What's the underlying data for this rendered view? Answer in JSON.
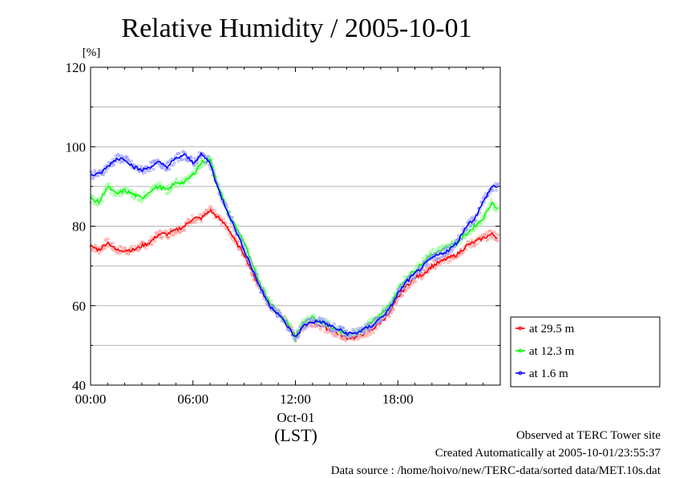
{
  "chart_data": {
    "type": "line",
    "title": "Relative Humidity / 2005-10-01",
    "ylabel": "[%]",
    "xlabel": "(LST)",
    "x_date_label": "Oct-01",
    "ylim": [
      40,
      120
    ],
    "xlim_hours": [
      0,
      24
    ],
    "y_ticks": [
      "40",
      "60",
      "80",
      "100",
      "120"
    ],
    "x_tick_hours": [
      0,
      6,
      12,
      18
    ],
    "x_ticks": [
      "00:00",
      "06:00",
      "12:00",
      "18:00"
    ],
    "grid": "horizontal",
    "legend_position": "right",
    "x_hours": [
      0,
      0.5,
      1,
      1.5,
      2,
      2.5,
      3,
      3.5,
      4,
      4.5,
      5,
      5.5,
      6,
      6.5,
      7,
      7.5,
      8,
      8.5,
      9,
      9.5,
      10,
      10.5,
      11,
      11.5,
      12,
      12.5,
      13,
      13.5,
      14,
      14.5,
      15,
      15.5,
      16,
      16.5,
      17,
      17.5,
      18,
      18.5,
      19,
      19.5,
      20,
      20.5,
      21,
      21.5,
      22,
      22.5,
      23,
      23.5,
      23.9
    ],
    "series": [
      {
        "name": "at 29.5 m",
        "color": "#ff0000",
        "values": [
          75,
          74,
          76,
          74,
          74,
          74,
          75,
          76,
          78,
          78,
          79,
          80,
          82,
          82,
          84,
          82,
          80,
          76,
          73,
          68,
          64,
          60,
          58,
          56,
          52,
          55,
          56,
          55,
          54,
          53,
          52,
          52,
          53,
          54,
          56,
          58,
          62,
          65,
          67,
          68,
          70,
          71,
          72,
          73,
          75,
          76,
          77,
          78,
          77
        ]
      },
      {
        "name": "at 12.3 m",
        "color": "#00ff00",
        "values": [
          87,
          86,
          90,
          88,
          89,
          88,
          87,
          89,
          90,
          89,
          91,
          91,
          93,
          96,
          97,
          90,
          84,
          80,
          76,
          70,
          65,
          61,
          58,
          56,
          52,
          56,
          57,
          56,
          55,
          54,
          53,
          53,
          54,
          56,
          58,
          60,
          64,
          67,
          69,
          71,
          73,
          74,
          75,
          76,
          78,
          80,
          82,
          86,
          84
        ]
      },
      {
        "name": "at 1.6 m",
        "color": "#0000ff",
        "values": [
          93,
          93,
          95,
          97,
          97,
          95,
          94,
          95,
          96,
          95,
          97,
          98,
          96,
          98,
          96,
          89,
          84,
          79,
          74,
          69,
          64,
          60,
          58,
          55,
          52,
          55,
          56,
          56,
          55,
          54,
          53,
          53,
          54,
          55,
          57,
          59,
          63,
          66,
          68,
          70,
          72,
          73,
          74,
          76,
          80,
          82,
          86,
          90,
          90
        ]
      }
    ]
  },
  "footer": {
    "line1": "Observed at TERC Tower site",
    "line2": "Created Automatically at 2005-10-01/23:55:37",
    "line3": "Data source : /home/hoivo/new/TERC-data/sorted  data/MET.10s.dat"
  }
}
